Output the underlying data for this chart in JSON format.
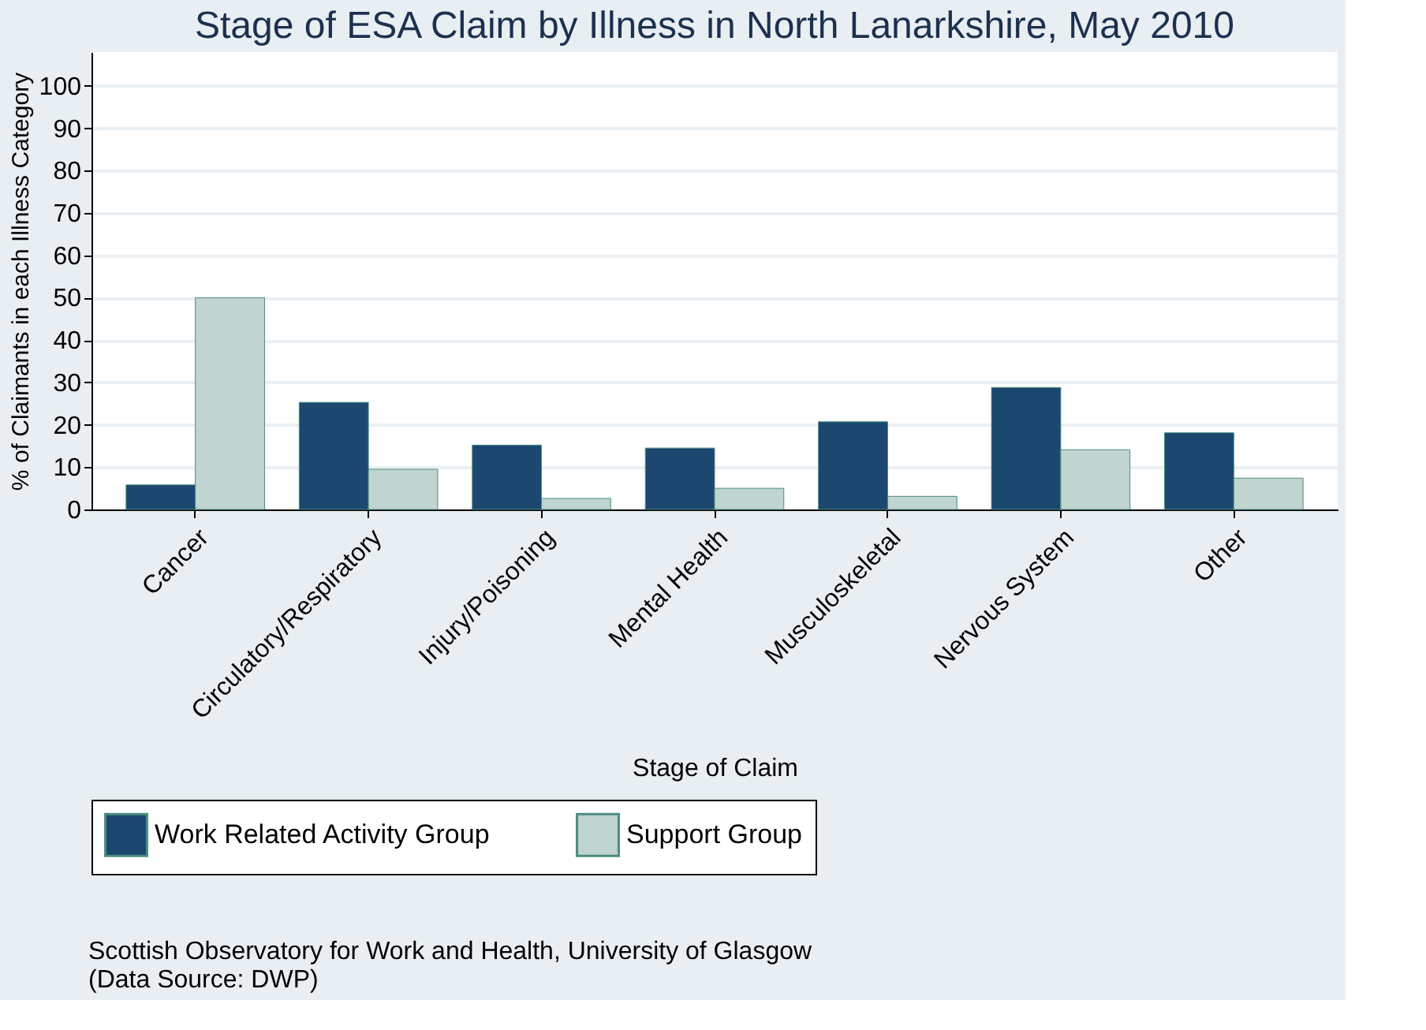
{
  "chart_data": {
    "type": "bar",
    "title": "Stage of ESA Claim by Illness in North Lanarkshire, May 2010",
    "xlabel": "Stage of Claim",
    "ylabel": "% of Claimants in each Illness Category",
    "categories": [
      "Cancer",
      "Circulatory/Respiratory",
      "Injury/Poisoning",
      "Mental Health",
      "Musculoskeletal",
      "Nervous System",
      "Other"
    ],
    "series": [
      {
        "name": "Work Related Activity Group",
        "color": "#1c476f",
        "values": [
          5.8,
          25.3,
          15.2,
          14.5,
          20.7,
          28.8,
          18.1
        ]
      },
      {
        "name": "Support Group",
        "color": "#c0d4d0",
        "values": [
          50,
          9.5,
          2.6,
          5.0,
          3.1,
          14.1,
          7.4
        ]
      }
    ],
    "ylim": [
      0,
      108
    ],
    "yticks": [
      0,
      10,
      20,
      30,
      40,
      50,
      60,
      70,
      80,
      90,
      100
    ],
    "grid": "y",
    "legend": "bottom",
    "annotations": [
      "Scottish Observatory for Work and Health, University of Glasgow",
      "(Data Source: DWP)"
    ]
  }
}
